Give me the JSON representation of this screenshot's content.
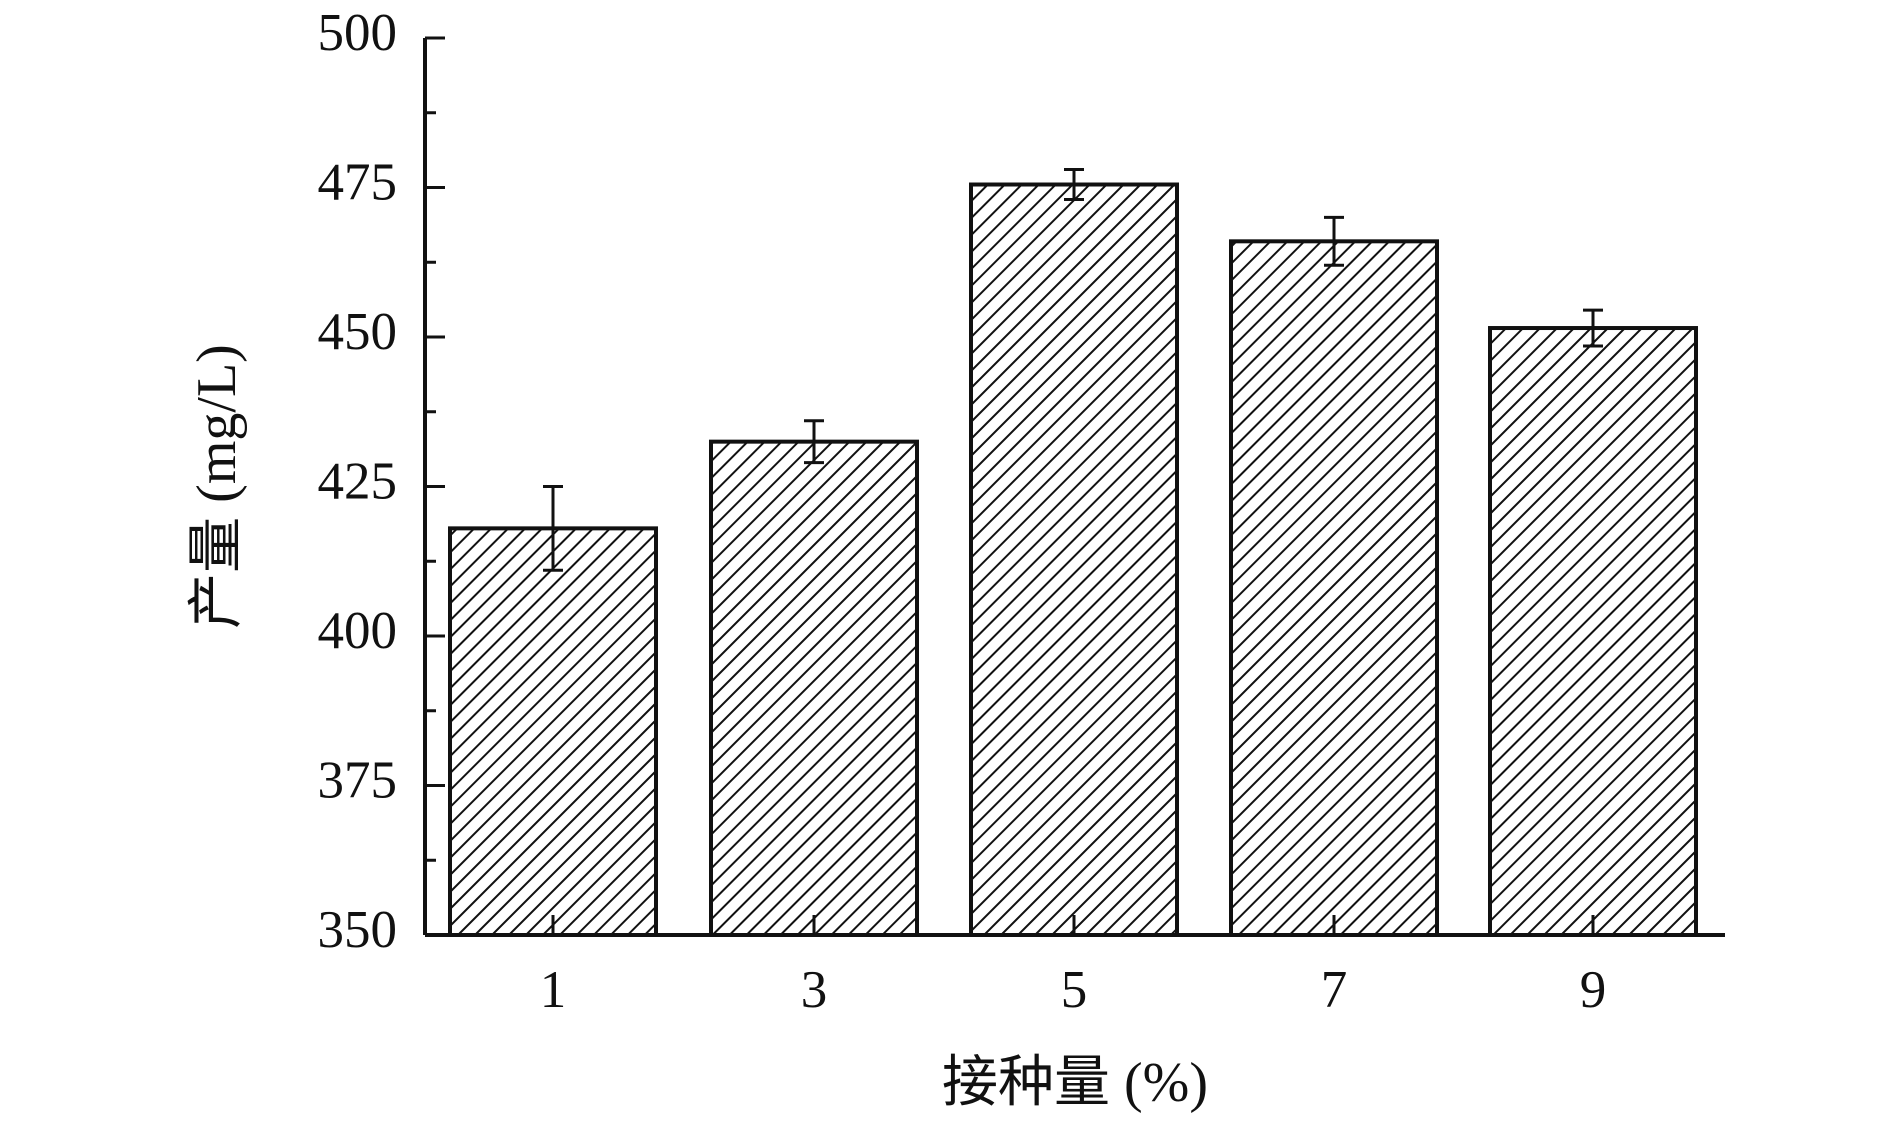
{
  "chart_data": {
    "type": "bar",
    "title": "",
    "xlabel": "接种量 (%)",
    "ylabel": "产量 (mg/L)",
    "categories": [
      "1",
      "3",
      "5",
      "7",
      "9"
    ],
    "values": [
      418,
      432.5,
      475.5,
      466,
      451.5
    ],
    "errors": [
      7,
      3.5,
      2.5,
      4,
      3
    ],
    "ylim": [
      350,
      500
    ],
    "yticks": [
      350,
      375,
      400,
      425,
      450,
      475,
      500
    ],
    "yticks_labels": [
      "350",
      "375",
      "400",
      "425",
      "450",
      "475",
      "500"
    ],
    "grid": false,
    "legend": "none",
    "bar_fill": "hatched-diagonal",
    "bar_color": "#ffffff",
    "line_color": "#111111"
  }
}
